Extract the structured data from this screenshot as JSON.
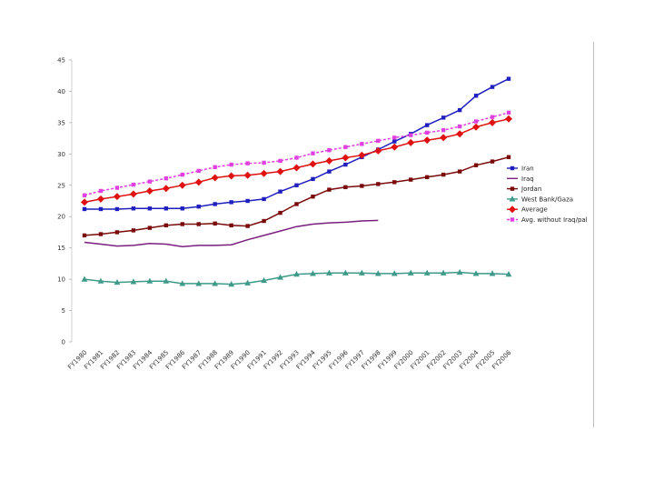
{
  "chart_data": {
    "type": "line",
    "title": "",
    "xlabel": "",
    "ylabel": "",
    "ylim": [
      0,
      45
    ],
    "yticks": [
      0,
      5,
      10,
      15,
      20,
      25,
      30,
      35,
      40,
      45
    ],
    "ytick_labels": [
      "0",
      "5",
      "10",
      "15",
      "20",
      "25",
      "30",
      "35",
      "40",
      "45"
    ],
    "grid": false,
    "legend_position": "right",
    "categories": [
      "FY1980",
      "FY1981",
      "FY1982",
      "FY1983",
      "FY1984",
      "FY1985",
      "FY1986",
      "FY1987",
      "FY1988",
      "FY1989",
      "FY1990",
      "FY1991",
      "FY1992",
      "FY1993",
      "FY1994",
      "FY1995",
      "FY1996",
      "FY1997",
      "FY1998",
      "FY1999",
      "FY2000",
      "FY2001",
      "FY2002",
      "FY2003",
      "FY2004",
      "FY2005",
      "FY2006"
    ],
    "series": [
      {
        "name": "Iran",
        "color": "#1f1fbf",
        "marker": "square",
        "dash": false,
        "values": [
          21.2,
          21.2,
          21.2,
          21.3,
          21.3,
          21.3,
          21.3,
          21.6,
          22.0,
          22.3,
          22.5,
          22.8,
          24.0,
          25.0,
          26.0,
          27.2,
          28.3,
          29.5,
          30.7,
          32.0,
          33.2,
          34.6,
          35.8,
          37.0,
          39.3,
          40.7,
          42.0
        ]
      },
      {
        "name": "Iraq",
        "color": "#7a1f7f",
        "marker": "none",
        "dash": false,
        "values": [
          15.9,
          15.6,
          15.3,
          15.4,
          15.7,
          15.6,
          15.2,
          15.4,
          15.4,
          15.5,
          16.3,
          17.0,
          17.7,
          18.4,
          18.8,
          19.0,
          19.1,
          19.3,
          19.4,
          null,
          null,
          null,
          null,
          null,
          null,
          null,
          null
        ]
      },
      {
        "name": "Jordan",
        "color": "#7a0a0a",
        "marker": "square",
        "dash": false,
        "values": [
          17.0,
          17.2,
          17.5,
          17.8,
          18.2,
          18.6,
          18.8,
          18.8,
          18.9,
          18.6,
          18.5,
          19.3,
          20.6,
          22.0,
          23.2,
          24.3,
          24.7,
          24.9,
          25.2,
          25.5,
          25.9,
          26.3,
          26.7,
          27.2,
          28.2,
          28.8,
          29.5
        ]
      },
      {
        "name": "West Bank/Gaza",
        "color": "#3f9a8a",
        "marker": "triangle",
        "dash": false,
        "values": [
          10.0,
          9.7,
          9.5,
          9.6,
          9.7,
          9.7,
          9.3,
          9.3,
          9.3,
          9.2,
          9.4,
          9.8,
          10.3,
          10.8,
          10.9,
          11.0,
          11.0,
          11.0,
          10.9,
          10.9,
          11.0,
          11.0,
          11.0,
          11.1,
          10.9,
          10.9,
          10.8
        ]
      },
      {
        "name": "Average",
        "color": "#e01010",
        "marker": "diamond",
        "dash": false,
        "values": [
          22.3,
          22.8,
          23.2,
          23.6,
          24.1,
          24.5,
          25.0,
          25.5,
          26.2,
          26.5,
          26.6,
          26.9,
          27.2,
          27.8,
          28.4,
          28.9,
          29.4,
          29.8,
          30.5,
          31.1,
          31.8,
          32.2,
          32.6,
          33.2,
          34.3,
          35.0,
          35.6
        ]
      },
      {
        "name": "Avg. without Iraq/pal",
        "color": "#e040e0",
        "marker": "square",
        "dash": true,
        "values": [
          23.4,
          24.1,
          24.6,
          25.1,
          25.6,
          26.1,
          26.7,
          27.3,
          27.9,
          28.3,
          28.5,
          28.6,
          28.9,
          29.4,
          30.1,
          30.6,
          31.1,
          31.6,
          32.1,
          32.6,
          33.0,
          33.4,
          33.8,
          34.4,
          35.2,
          35.9,
          36.6
        ]
      }
    ]
  }
}
